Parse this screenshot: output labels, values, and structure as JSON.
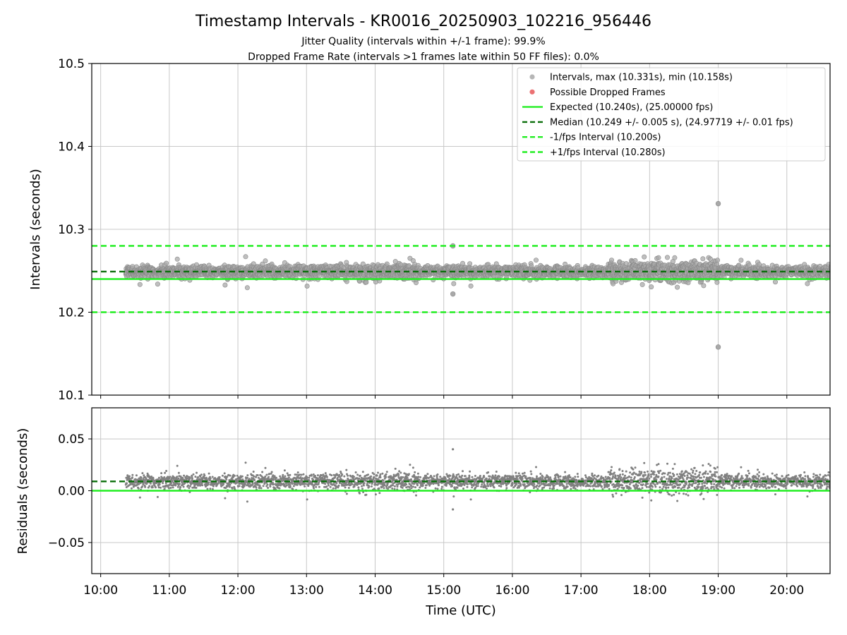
{
  "title": "Timestamp Intervals - KR0016_20250903_102216_956446",
  "subtitle_lines": [
    "Jitter Quality (intervals within +/-1 frame): 99.9%",
    "Dropped Frame Rate (intervals >1 frames late within 50 FF files): 0.0%"
  ],
  "colors": {
    "points": "#808080",
    "dropped": "#e8585a",
    "expected": "#22ee22",
    "median": "#0a6e0a",
    "interval_bounds": "#22ee22",
    "grid": "#c8c8c8"
  },
  "chart_data": [
    {
      "id": "intervals",
      "type": "scatter",
      "ylabel": "Intervals (seconds)",
      "xlim_hours": [
        9.87,
        20.63
      ],
      "ylim": [
        10.1,
        10.5
      ],
      "yticks": [
        "10.1",
        "10.2",
        "10.3",
        "10.4",
        "10.5"
      ],
      "grid": true,
      "legend": {
        "placement": "top-right",
        "entries": [
          {
            "kind": "marker",
            "color": "#a9a9a9",
            "label": "Intervals, max (10.331s), min (10.158s)"
          },
          {
            "kind": "marker",
            "color": "#e8585a",
            "label": "Possible Dropped Frames"
          },
          {
            "kind": "solid",
            "color": "#22ee22",
            "label": "Expected (10.240s), (25.00000 fps)"
          },
          {
            "kind": "dashed",
            "color": "#0a6e0a",
            "label": "Median (10.249 +/- 0.005 s), (24.97719 +/- 0.01 fps)"
          },
          {
            "kind": "dashed",
            "color": "#22ee22",
            "label": "-1/fps Interval (10.200s)"
          },
          {
            "kind": "dashed",
            "color": "#22ee22",
            "label": "+1/fps Interval (10.280s)"
          }
        ]
      },
      "reference_lines": [
        {
          "name": "expected",
          "y": 10.24,
          "style": "solid"
        },
        {
          "name": "median",
          "y": 10.249,
          "style": "dashed"
        },
        {
          "name": "minus-1-fps",
          "y": 10.2,
          "style": "dashed"
        },
        {
          "name": "plus-1-fps",
          "y": 10.28,
          "style": "dashed"
        }
      ],
      "series": {
        "time_start": "10:22",
        "time_end": "20:40",
        "median": 10.249,
        "spread": 0.005,
        "max": 10.331,
        "min": 10.158,
        "notable_points": [
          {
            "time": "19:00",
            "y": 10.331
          },
          {
            "time": "19:00",
            "y": 10.158
          },
          {
            "time": "15:08",
            "y": 10.28
          },
          {
            "time": "15:08",
            "y": 10.222
          }
        ]
      }
    },
    {
      "id": "residuals",
      "type": "scatter",
      "xlabel": "Time (UTC)",
      "ylabel": "Residuals (seconds)",
      "xlim_hours": [
        9.87,
        20.63
      ],
      "ylim": [
        -0.08,
        0.08
      ],
      "yticks": [
        "−0.05",
        "0.00",
        "0.05"
      ],
      "xticks": [
        "10:00",
        "11:00",
        "12:00",
        "13:00",
        "14:00",
        "15:00",
        "16:00",
        "17:00",
        "18:00",
        "19:00",
        "20:00"
      ],
      "grid": true,
      "reference_lines": [
        {
          "name": "zero",
          "y": 0.0,
          "style": "solid"
        },
        {
          "name": "median-residual",
          "y": 0.009,
          "style": "dashed"
        }
      ]
    }
  ]
}
